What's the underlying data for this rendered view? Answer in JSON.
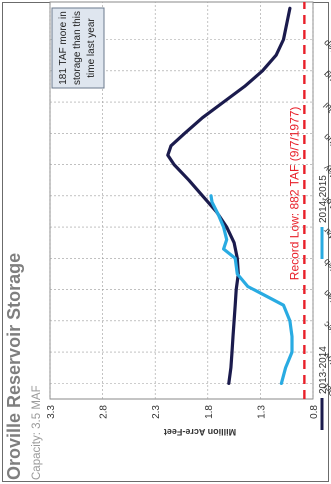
{
  "chart_data": {
    "type": "line",
    "title": "Oroville Reservoir Storage",
    "subtitle": "Capacity: 3.5 MAF",
    "ylabel": "Million Acre-Feet",
    "ylim": [
      0.8,
      3.3
    ],
    "yticks": [
      "0.8",
      "1.3",
      "1.8",
      "2.3",
      "2.8",
      "3.3"
    ],
    "ytick_values": [
      0.8,
      1.3,
      1.8,
      2.3,
      2.8,
      3.3
    ],
    "categories": [
      "Oct",
      "Nov",
      "Dec",
      "Jan",
      "Feb",
      "Mar",
      "Apr",
      "May",
      "Jun",
      "Jul",
      "Aug",
      "Sep"
    ],
    "grid": true,
    "rotation": "rotated 90° counter-clockwise",
    "series": [
      {
        "name": "2013-2014",
        "color": "#1b1b4d",
        "x": [
          0,
          0.5,
          1,
          1.5,
          2,
          2.5,
          3,
          3.5,
          4,
          4.5,
          5,
          5.5,
          6,
          6.5,
          7,
          7.3,
          7.6,
          8,
          8.5,
          9,
          9.5,
          10,
          10.5,
          11,
          11.5,
          12
        ],
        "values": [
          1.6,
          1.58,
          1.57,
          1.56,
          1.55,
          1.54,
          1.53,
          1.51,
          1.52,
          1.55,
          1.62,
          1.72,
          1.85,
          1.98,
          2.12,
          2.18,
          2.15,
          2.02,
          1.85,
          1.65,
          1.45,
          1.28,
          1.15,
          1.08,
          1.05,
          1.02
        ]
      },
      {
        "name": "2014-2015",
        "color": "#29abe2",
        "x": [
          0,
          0.5,
          1,
          1.5,
          2,
          2.5,
          2.8,
          3.1,
          3.5,
          4,
          4.3,
          4.6,
          5,
          5.4,
          5.8,
          6
        ],
        "values": [
          1.1,
          1.06,
          1.0,
          1.0,
          1.02,
          1.08,
          1.25,
          1.42,
          1.52,
          1.54,
          1.65,
          1.62,
          1.65,
          1.7,
          1.76,
          1.77
        ]
      }
    ],
    "reference_line": {
      "label": "Record Low: 882 TAF (9/7/1977)",
      "value": 0.882,
      "color": "#e8202a"
    },
    "annotation": {
      "lines": [
        "181 TAF more in",
        "storage than this",
        "time last year"
      ],
      "fill": "#dfe6ef",
      "border": "#6b7a8c"
    }
  }
}
